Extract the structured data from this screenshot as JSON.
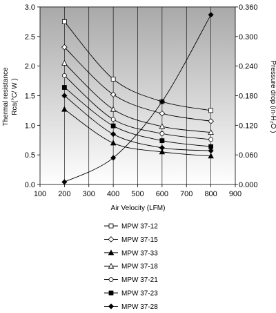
{
  "chart_data": {
    "type": "line",
    "xlabel": "Air Velocity (LFM)",
    "ylabel_left": [
      "Thermal resistance",
      "Rca(°C/ W )"
    ],
    "ylabel_right": "Pressure drop  (in-H₂O )",
    "xlim": [
      100,
      900
    ],
    "ylim_left": [
      0,
      3.0
    ],
    "ylim_right": [
      0,
      0.36
    ],
    "x_ticks": [
      "100",
      "200",
      "300",
      "400",
      "500",
      "600",
      "700",
      "800",
      "900"
    ],
    "y_ticks_left": [
      "0.0",
      "0.5",
      "1.0",
      "1.5",
      "2.0",
      "2.5",
      "3.0"
    ],
    "y_ticks_right": [
      "0.000",
      "0.060",
      "0.120",
      "0.180",
      "0.240",
      "0.300",
      "0.360"
    ],
    "grid": "vertical",
    "background": "gradient gray",
    "legend_position": "bottom",
    "x": [
      200,
      400,
      600,
      800
    ],
    "series": [
      {
        "name": "MPW 37-12",
        "marker": "open-square",
        "values": [
          2.75,
          1.78,
          1.4,
          1.25
        ]
      },
      {
        "name": "MPW 37-15",
        "marker": "open-diamond",
        "values": [
          2.32,
          1.52,
          1.2,
          1.07
        ]
      },
      {
        "name": "MPW 37-33",
        "marker": "filled-triangle",
        "values": [
          1.27,
          0.7,
          0.55,
          0.48
        ]
      },
      {
        "name": "MPW 37-18",
        "marker": "open-triangle",
        "values": [
          2.05,
          1.27,
          0.98,
          0.88
        ]
      },
      {
        "name": "MPW 37-21",
        "marker": "open-circle",
        "values": [
          1.84,
          1.1,
          0.86,
          0.76
        ]
      },
      {
        "name": "MPW 37-23",
        "marker": "filled-square",
        "values": [
          1.64,
          0.99,
          0.74,
          0.64
        ]
      },
      {
        "name": "MPW 37-28",
        "marker": "filled-diamond",
        "values": [
          1.5,
          0.85,
          0.62,
          0.57
        ]
      }
    ],
    "pressure_drop": {
      "x": [
        200,
        400,
        600,
        800
      ],
      "values": [
        0.005,
        0.054,
        0.168,
        0.344
      ],
      "marker": "filled-diamond",
      "axis": "right"
    }
  }
}
